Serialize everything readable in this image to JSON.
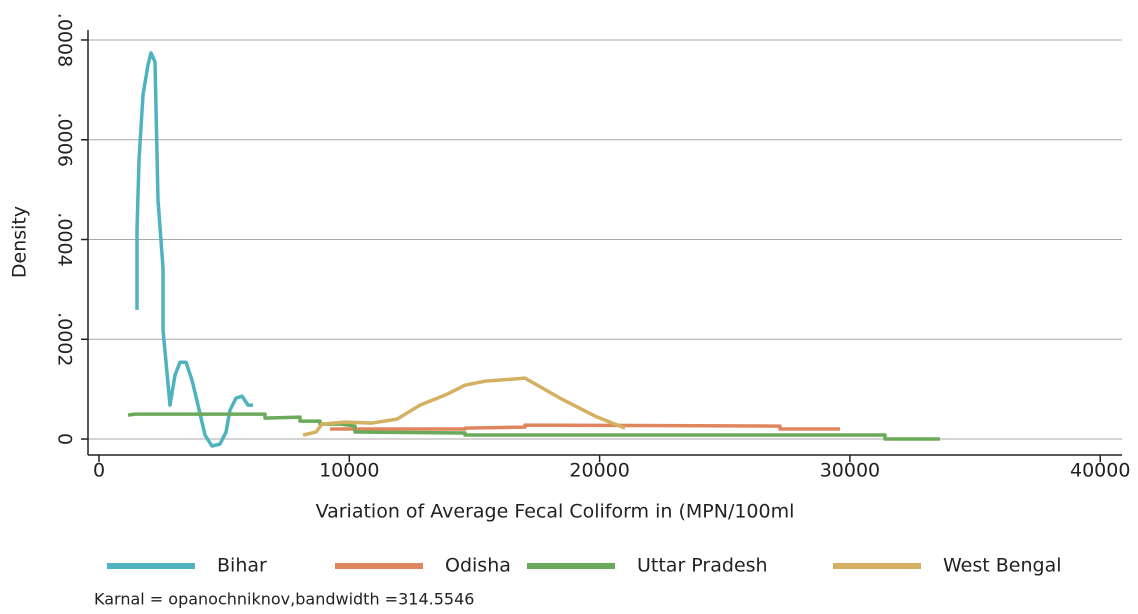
{
  "chart_data": {
    "type": "line",
    "x_label": "Variation of Average Fecal Coliform in (MPN/100ml",
    "y_label": "Density",
    "note": "Karnal = opanochniknov,bandwidth =314.5546",
    "xlim": [
      -440,
      40870
    ],
    "ylim": [
      -3.2e-05,
      0.00082
    ],
    "xticks": [
      0,
      10000,
      20000,
      30000,
      40000
    ],
    "yticks": [
      0,
      {
        "value": 0.0002,
        "label": ".0002"
      },
      {
        "value": 0.0004,
        "label": ".0004"
      },
      {
        "value": 0.0006,
        "label": ".0006"
      },
      {
        "value": 0.0008,
        "label": ".0008"
      }
    ],
    "grid": true,
    "legend": "bottom",
    "series": [
      {
        "name": "Bihar",
        "color": "#4fb3bf",
        "x": [
          1518,
          1518,
          1598,
          1758,
          1957,
          2077,
          2237,
          2357,
          2557,
          2557,
          2836,
          3036,
          3236,
          3476,
          3715,
          3955,
          4235,
          4514,
          4834,
          5074,
          5233,
          5473,
          5713,
          5953,
          6152
        ],
        "values": [
          0.000259,
          0.000419,
          0.000559,
          0.00069,
          0.00075,
          0.000774,
          0.000756,
          0.000479,
          0.000343,
          0.000219,
          6.8e-05,
          0.000128,
          0.000154,
          0.000154,
          0.000118,
          6.8e-05,
          8e-06,
          -1.4e-05,
          -1e-05,
          1.4e-05,
          5.8e-05,
          8.2e-05,
          8.6e-05,
          6.8e-05,
          6.8e-05
        ]
      },
      {
        "name": "Odisha",
        "color": "#e0865f",
        "x": [
          9228,
          14622,
          14622,
          17019,
          17019,
          27206,
          27206,
          29603
        ],
        "values": [
          2e-05,
          2e-05,
          2.2e-05,
          2.4e-05,
          2.8e-05,
          2.6e-05,
          2e-05,
          2e-05
        ]
      },
      {
        "name": "Uttar Pradesh",
        "color": "#6aaa5a",
        "x": [
          1159,
          1438,
          6632,
          6632,
          8030,
          8030,
          8829,
          8829,
          9628,
          10227,
          10227,
          14622,
          14622,
          31401,
          31401,
          33598
        ],
        "values": [
          4.8e-05,
          5e-05,
          5e-05,
          4.2e-05,
          4.4e-05,
          3.6e-05,
          3.6e-05,
          3e-05,
          3e-05,
          2.6e-05,
          1.4e-05,
          1.2e-05,
          8e-06,
          8e-06,
          0,
          0
        ]
      },
      {
        "name": "West Bengal",
        "color": "#d4b062",
        "x": [
          8150,
          8669,
          8909,
          9828,
          10906,
          11905,
          12824,
          13823,
          14622,
          15421,
          17019,
          18417,
          19815,
          21013
        ],
        "values": [
          8e-06,
          1.4e-05,
          3e-05,
          3.4e-05,
          3.2e-05,
          4e-05,
          6.8e-05,
          8.8e-05,
          0.000108,
          0.000116,
          0.000122,
          8.2e-05,
          4.6e-05,
          2.2e-05
        ]
      }
    ]
  }
}
